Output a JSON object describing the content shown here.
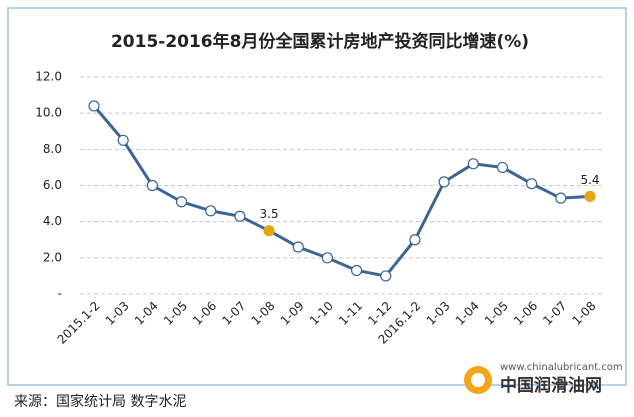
{
  "chart_data": {
    "type": "line",
    "title": "2015-2016年8月份全国累计房地产投资同比增速(%)",
    "categories": [
      "2015.1-2",
      "1-03",
      "1-04",
      "1-05",
      "1-06",
      "1-07",
      "1-08",
      "1-09",
      "1-10",
      "1-11",
      "1-12",
      "2016.1-2",
      "1-03",
      "1-04",
      "1-05",
      "1-06",
      "1-07",
      "1-08"
    ],
    "series": [
      {
        "name": "全国累计房地产投资同比增速",
        "color": "#3b6594",
        "values": [
          10.4,
          8.5,
          6.0,
          5.1,
          4.6,
          4.3,
          3.5,
          2.6,
          2.0,
          1.3,
          1.0,
          3.0,
          6.2,
          7.2,
          7.0,
          6.1,
          5.3,
          5.4
        ]
      }
    ],
    "highlight_points": [
      6,
      17
    ],
    "highlight_color": "#e6a514",
    "ylim": [
      0,
      12
    ],
    "yticks": [
      {
        "value": 0,
        "label": "-"
      },
      {
        "value": 2,
        "label": "2.0"
      },
      {
        "value": 4,
        "label": "4.0"
      },
      {
        "value": 6,
        "label": "6.0"
      },
      {
        "value": 8,
        "label": "8.0"
      },
      {
        "value": 10,
        "label": "10.0"
      },
      {
        "value": 12,
        "label": "12.0"
      }
    ],
    "grid": true
  },
  "footer": {
    "source": "来源：国家统计局 数字水泥",
    "website": "www.chinalubricant.com",
    "brand": "中国润滑油网"
  }
}
